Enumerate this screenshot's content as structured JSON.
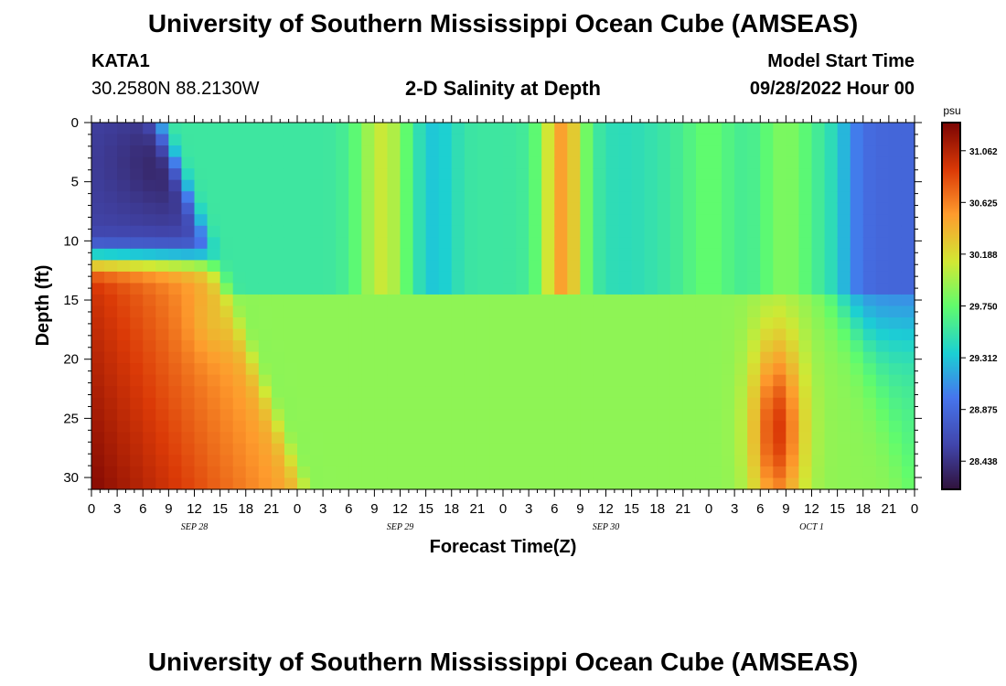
{
  "header": {
    "title": "University of Southern Mississippi Ocean Cube (AMSEAS)",
    "station": "KATA1",
    "coords": "30.2580N  88.2130W",
    "subtitle": "2-D Salinity at Depth",
    "start_label": "Model Start Time",
    "start_date": "09/28/2022 Hour 00",
    "footer_title": "University of Southern Mississippi Ocean Cube (AMSEAS)"
  },
  "chart_data": {
    "type": "heatmap",
    "title": "2-D Salinity at Depth",
    "xlabel": "Forecast Time(Z)",
    "ylabel": "Depth (ft)",
    "x_range_hours": [
      0,
      96
    ],
    "y_range_ft": [
      0,
      31
    ],
    "y_inverted": true,
    "x_tick_labels": [
      "0",
      "3",
      "6",
      "9",
      "12",
      "15",
      "18",
      "21",
      "0",
      "3",
      "6",
      "9",
      "12",
      "15",
      "18",
      "21",
      "0",
      "3",
      "6",
      "9",
      "12",
      "15",
      "18",
      "21",
      "0",
      "3",
      "6",
      "9",
      "12",
      "15",
      "18",
      "21",
      "0"
    ],
    "y_ticks": [
      0,
      5,
      10,
      15,
      20,
      25,
      30
    ],
    "day_labels": [
      {
        "label": "SEP 28",
        "hour": 12
      },
      {
        "label": "SEP 29",
        "hour": 36
      },
      {
        "label": "SEP 30",
        "hour": 60
      },
      {
        "label": "OCT 1",
        "hour": 84
      }
    ],
    "colorbar": {
      "unit": "psu",
      "min": 28.2,
      "max": 31.3,
      "tick_labels": [
        "31.062",
        "30.625",
        "30.188",
        "29.750",
        "29.312",
        "28.875",
        "28.438"
      ],
      "tick_values": [
        31.062,
        30.625,
        30.188,
        29.75,
        29.312,
        28.875,
        28.438
      ]
    },
    "colormap": "turbo"
  }
}
